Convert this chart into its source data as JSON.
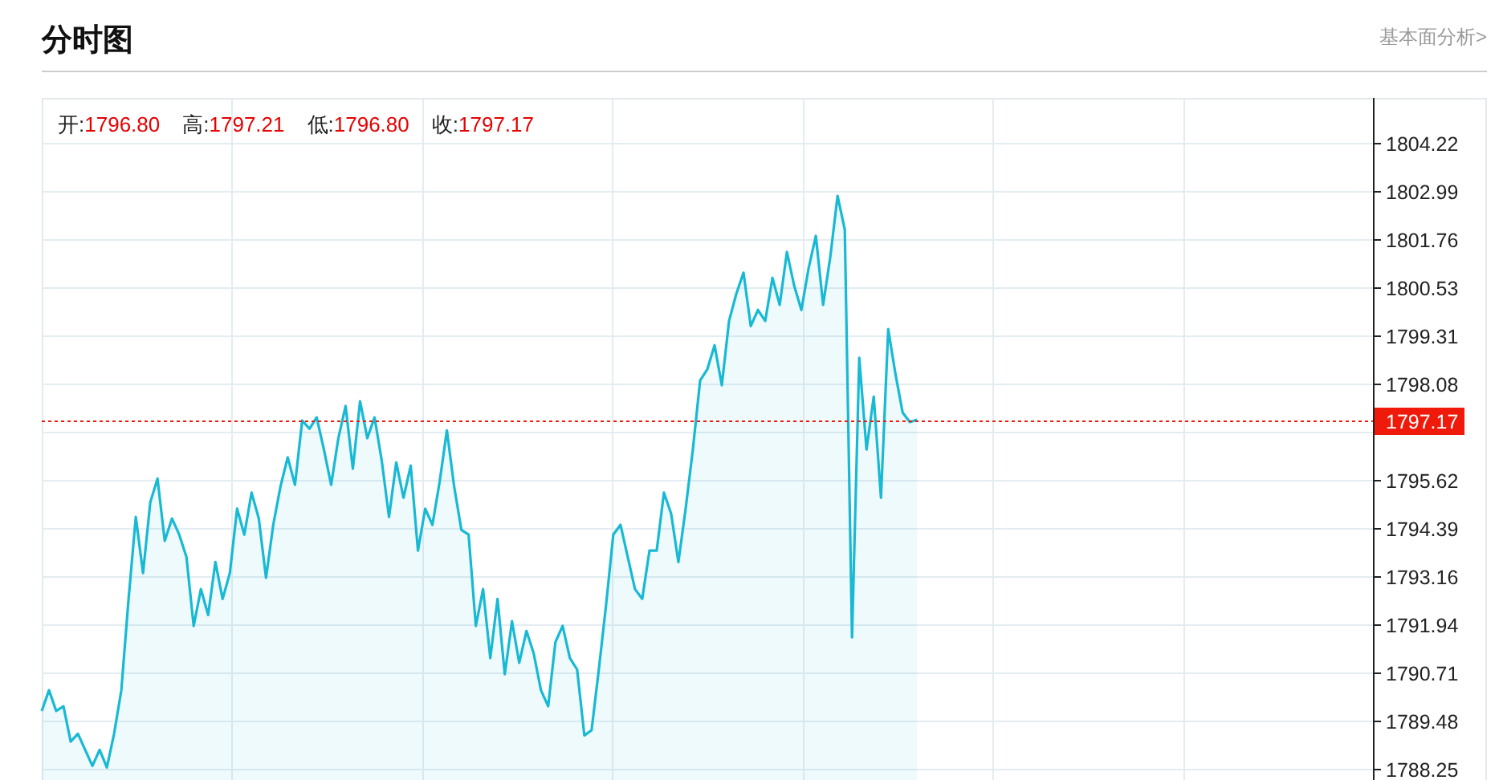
{
  "chart_data": {
    "type": "area",
    "title": "分时图",
    "subtitle": "基本面分析>",
    "annotations": [
      "开:1796.80",
      "高:1797.21",
      "低:1796.80",
      "收:1797.17"
    ],
    "categories": [
      null,
      null,
      null,
      null,
      null,
      null,
      null,
      null,
      null,
      null,
      null,
      null,
      null,
      null,
      null,
      null,
      null,
      null,
      null,
      null,
      null,
      null,
      null,
      null,
      null,
      null,
      null,
      null,
      null,
      null,
      null,
      null,
      null,
      null,
      null,
      null,
      null,
      null,
      null,
      null,
      null,
      null,
      null,
      null,
      null,
      null,
      null,
      null,
      null,
      null,
      null,
      null,
      null,
      null,
      null,
      null,
      null,
      null,
      null,
      null,
      null,
      null,
      null,
      null,
      null,
      null,
      null,
      null,
      null,
      null,
      null,
      null,
      null,
      null,
      null,
      null,
      null,
      null,
      null,
      null,
      null,
      null,
      null,
      null,
      null,
      null,
      null,
      null,
      null,
      null,
      null,
      null,
      null,
      null,
      null,
      null,
      null,
      null,
      null,
      null,
      null,
      null,
      null,
      null,
      null,
      null,
      null,
      null,
      null,
      null,
      null,
      null,
      null,
      null,
      null,
      null,
      null,
      null,
      null,
      null,
      null,
      null,
      null,
      null,
      null,
      null,
      null,
      null,
      null,
      null,
      null,
      null,
      null,
      null,
      null,
      null,
      null,
      null,
      null,
      null,
      null,
      null,
      null,
      null,
      null,
      null,
      null,
      null,
      null,
      null,
      null,
      null,
      null,
      null,
      null,
      null,
      null,
      null,
      null,
      null,
      null,
      null,
      null,
      null,
      null,
      null,
      null,
      null,
      null,
      null,
      null,
      null,
      null,
      null,
      null,
      null,
      null,
      null,
      null,
      null,
      null,
      null,
      null,
      null,
      null
    ],
    "series": [
      {
        "color": "#17b9d5",
        "values": [
          1789.74,
          1790.27,
          1789.74,
          1789.86,
          1788.96,
          1789.16,
          1788.75,
          1788.34,
          1788.75,
          1788.3,
          1789.16,
          1790.27,
          1792.6,
          1794.69,
          1793.26,
          1795.06,
          1795.67,
          1794.08,
          1794.65,
          1794.24,
          1793.67,
          1791.91,
          1792.85,
          1792.19,
          1793.54,
          1792.6,
          1793.26,
          1794.9,
          1794.24,
          1795.31,
          1794.65,
          1793.14,
          1794.49,
          1795.47,
          1796.21,
          1795.51,
          1797.15,
          1796.94,
          1797.23,
          1796.41,
          1795.51,
          1796.7,
          1797.52,
          1795.92,
          1797.64,
          1796.7,
          1797.23,
          1796.12,
          1794.69,
          1796.08,
          1795.18,
          1796.0,
          1793.83,
          1794.9,
          1794.49,
          1795.59,
          1796.9,
          1795.47,
          1794.36,
          1794.24,
          1791.91,
          1792.85,
          1791.09,
          1792.6,
          1790.68,
          1792.03,
          1790.97,
          1791.78,
          1791.21,
          1790.27,
          1789.86,
          1791.5,
          1791.91,
          1791.09,
          1790.8,
          1789.12,
          1789.25,
          1790.8,
          1792.44,
          1794.24,
          1794.49,
          1793.67,
          1792.85,
          1792.6,
          1793.83,
          1793.83,
          1795.31,
          1794.77,
          1793.54,
          1794.9,
          1796.41,
          1798.17,
          1798.46,
          1799.07,
          1798.05,
          1799.69,
          1800.38,
          1800.92,
          1799.56,
          1799.97,
          1799.69,
          1800.79,
          1800.1,
          1801.45,
          1800.59,
          1799.97,
          1801.04,
          1801.86,
          1800.1,
          1801.33,
          1802.88,
          1802.02,
          1791.62,
          1798.75,
          1796.41,
          1797.76,
          1795.18,
          1799.48,
          1798.34,
          1797.35,
          1797.11,
          1797.17,
          null,
          null,
          null,
          null,
          null,
          null,
          null,
          null,
          null,
          null,
          null,
          null,
          null,
          null,
          null,
          null,
          null,
          null,
          null,
          null,
          null,
          null,
          null,
          null,
          null,
          null,
          null,
          null,
          null,
          null,
          null,
          null,
          null,
          null,
          null,
          null,
          null,
          null,
          null,
          null,
          null,
          null,
          null,
          null,
          null,
          null,
          null,
          null,
          null,
          null,
          null,
          null,
          null,
          null,
          null,
          null,
          null,
          null,
          null,
          null,
          null,
          null,
          null
        ]
      }
    ],
    "ylim": [
      1787.98,
      1805.38
    ],
    "yticks": [
      1804.22,
      1802.99,
      1801.76,
      1800.53,
      1799.31,
      1798.08,
      {
        "value": 1796.85,
        "label": null
      },
      1795.62,
      1794.39,
      1793.16,
      1791.94,
      1790.71,
      1789.48,
      1788.25
    ],
    "ref_lines": [
      {
        "axis": "y",
        "value": 1797.17,
        "label": "1797.17",
        "color": "#f01a0a",
        "line_style": "dotted"
      }
    ],
    "grid": true
  }
}
